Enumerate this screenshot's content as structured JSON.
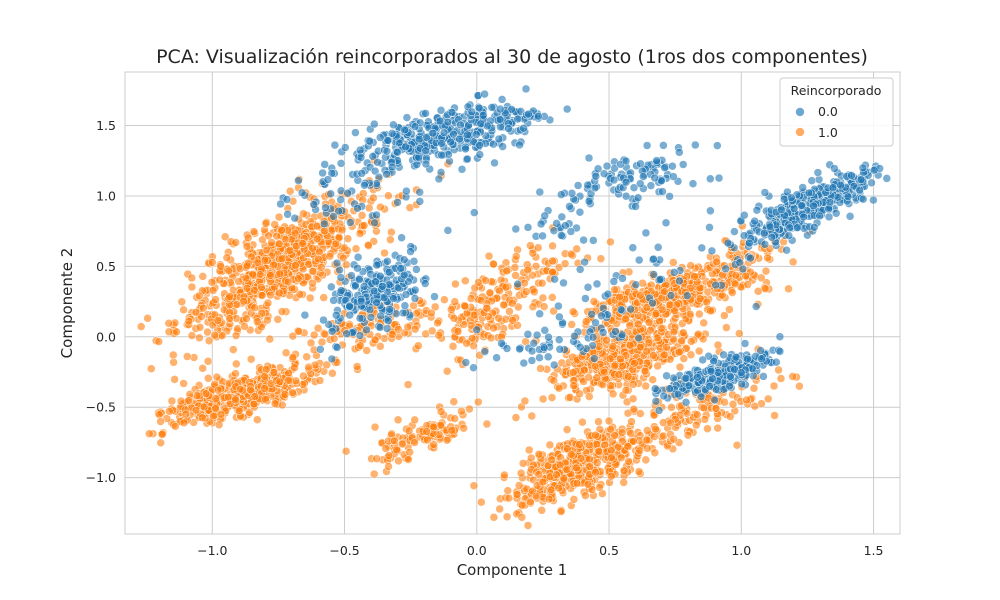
{
  "chart_data": {
    "type": "scatter",
    "title": "PCA: Visualización reincorporados al 30 de agosto (1ros dos componentes)",
    "xlabel": "Componente 1",
    "ylabel": "Componente 2",
    "xlim": [
      -1.33,
      1.6
    ],
    "ylim": [
      -1.4,
      1.88
    ],
    "xticks": [
      -1.0,
      -0.5,
      0.0,
      0.5,
      1.0,
      1.5
    ],
    "xtick_labels": [
      "−1.0",
      "−0.5",
      "0.0",
      "0.5",
      "1.0",
      "1.5"
    ],
    "yticks": [
      -1.0,
      -0.5,
      0.0,
      0.5,
      1.0,
      1.5
    ],
    "ytick_labels": [
      "−1.0",
      "−0.5",
      "0.0",
      "0.5",
      "1.0",
      "1.5"
    ],
    "grid": true,
    "legend": {
      "title": "Reincorporado",
      "placement": "top-right"
    },
    "series": [
      {
        "name": "0.0",
        "color": "#1f77b4",
        "clusters": [
          {
            "center": [
              -0.15,
              1.4
            ],
            "sx": 0.16,
            "sy": 0.11,
            "n": 320,
            "rho": 0.55
          },
          {
            "center": [
              0.08,
              1.55
            ],
            "sx": 0.1,
            "sy": 0.06,
            "n": 60,
            "rho": 0.3
          },
          {
            "center": [
              -0.38,
              0.3
            ],
            "sx": 0.09,
            "sy": 0.13,
            "n": 230,
            "rho": 0.4
          },
          {
            "center": [
              0.62,
              1.15
            ],
            "sx": 0.12,
            "sy": 0.1,
            "n": 90,
            "rho": 0.3
          },
          {
            "center": [
              0.35,
              0.9
            ],
            "sx": 0.1,
            "sy": 0.15,
            "n": 35,
            "rho": 0.3
          },
          {
            "center": [
              1.25,
              0.92
            ],
            "sx": 0.13,
            "sy": 0.14,
            "n": 360,
            "rho": 0.85
          },
          {
            "center": [
              0.93,
              -0.25
            ],
            "sx": 0.1,
            "sy": 0.08,
            "n": 260,
            "rho": 0.7
          },
          {
            "center": [
              0.35,
              0.0
            ],
            "sx": 0.14,
            "sy": 0.1,
            "n": 60,
            "rho": 0.4
          },
          {
            "center": [
              -0.45,
              1.0
            ],
            "sx": 0.15,
            "sy": 0.1,
            "n": 50,
            "rho": 0.2
          },
          {
            "center": [
              0.7,
              0.45
            ],
            "sx": 0.25,
            "sy": 0.2,
            "n": 60,
            "rho": 0.5
          }
        ]
      },
      {
        "name": "1.0",
        "color": "#ff7f0e",
        "clusters": [
          {
            "center": [
              -0.75,
              0.5
            ],
            "sx": 0.18,
            "sy": 0.26,
            "n": 750,
            "rho": 0.78
          },
          {
            "center": [
              -0.9,
              -0.42
            ],
            "sx": 0.14,
            "sy": 0.1,
            "n": 420,
            "rho": 0.7
          },
          {
            "center": [
              0.55,
              -0.15
            ],
            "sx": 0.14,
            "sy": 0.14,
            "n": 450,
            "rho": 0.6
          },
          {
            "center": [
              0.75,
              0.3
            ],
            "sx": 0.17,
            "sy": 0.12,
            "n": 400,
            "rho": 0.7
          },
          {
            "center": [
              0.4,
              -0.9
            ],
            "sx": 0.13,
            "sy": 0.15,
            "n": 480,
            "rho": 0.65
          },
          {
            "center": [
              -0.2,
              -0.7
            ],
            "sx": 0.1,
            "sy": 0.1,
            "n": 110,
            "rho": 0.7
          },
          {
            "center": [
              0.05,
              0.2
            ],
            "sx": 0.12,
            "sy": 0.2,
            "n": 160,
            "rho": 0.6
          },
          {
            "center": [
              -0.4,
              0.05
            ],
            "sx": 0.15,
            "sy": 0.1,
            "n": 120,
            "rho": 0.5
          },
          {
            "center": [
              0.85,
              -0.5
            ],
            "sx": 0.15,
            "sy": 0.15,
            "n": 130,
            "rho": 0.6
          },
          {
            "center": [
              0.25,
              0.5
            ],
            "sx": 0.1,
            "sy": 0.1,
            "n": 45,
            "rho": 0.4
          },
          {
            "center": [
              1.0,
              0.6
            ],
            "sx": 0.1,
            "sy": 0.1,
            "n": 50,
            "rho": 0.5
          }
        ]
      }
    ]
  }
}
